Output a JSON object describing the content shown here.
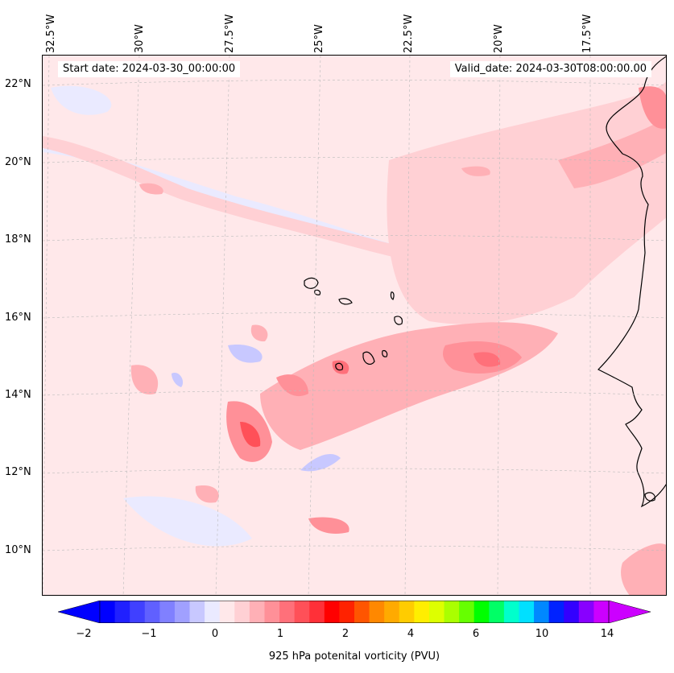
{
  "map": {
    "start_date_text": "Start date: 2024-03-30_00:00:00",
    "valid_date_text": "Valid_date: 2024-03-30T08:00:00.00",
    "longitude_labels": [
      "32.5°W",
      "30°W",
      "27.5°W",
      "25°W",
      "22.5°W",
      "20°W",
      "17.5°W"
    ],
    "latitude_labels": [
      "22°N",
      "20°N",
      "18°N",
      "16°N",
      "14°N",
      "12°N",
      "10°N"
    ],
    "field_name": "925 hPa potenital vorticity (PVU)",
    "coastline_color": "#000000",
    "gridline_color": "#bbbbbb"
  },
  "colorbar": {
    "ticks": [
      "−2",
      "−1",
      "0",
      "1",
      "2",
      "4",
      "6",
      "10",
      "14"
    ],
    "colors": [
      "#0000ff",
      "#2020ff",
      "#4040ff",
      "#6060ff",
      "#8080ff",
      "#a0a0ff",
      "#c8c8ff",
      "#eaeaff",
      "#ffe8ea",
      "#ffd0d4",
      "#ffb0b6",
      "#ff9098",
      "#ff707a",
      "#ff5058",
      "#ff3038",
      "#ff0000",
      "#ff2200",
      "#ff5500",
      "#ff8800",
      "#ffaa00",
      "#ffcc00",
      "#ffee00",
      "#ddff00",
      "#aaff00",
      "#66ff00",
      "#00ff00",
      "#00ff66",
      "#00ffcc",
      "#00e0ff",
      "#0088ff",
      "#0022ff",
      "#3300ff",
      "#8800ff",
      "#cc00ff"
    ],
    "extend_low_color": "#0000ff",
    "extend_high_color": "#cc00ff"
  }
}
